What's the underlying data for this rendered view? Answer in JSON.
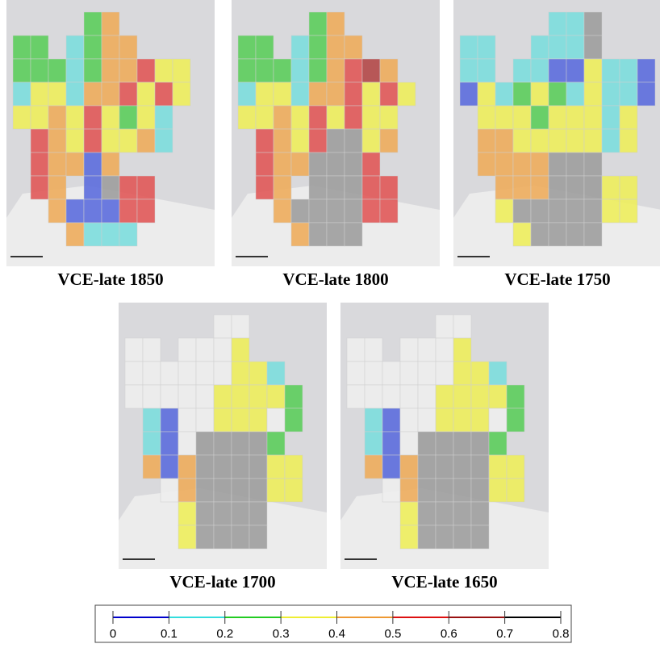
{
  "panels": [
    {
      "caption": "VCE-late 1850"
    },
    {
      "caption": "VCE-late 1800"
    },
    {
      "caption": "VCE-late 1750"
    },
    {
      "caption": "VCE-late 1700"
    },
    {
      "caption": "VCE-late 1650"
    }
  ],
  "legend": {
    "ticks": [
      0,
      0.1,
      0.2,
      0.3,
      0.4,
      0.5,
      0.6,
      0.7,
      0.8
    ],
    "colors": [
      "#0000cc",
      "#33dddd",
      "#22cc22",
      "#eeee33",
      "#ee9933",
      "#dd1111",
      "#991111",
      "#000000"
    ]
  }
}
